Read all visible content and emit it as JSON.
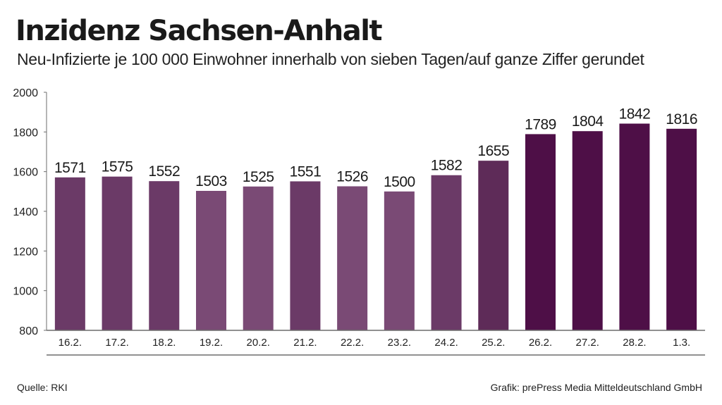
{
  "header": {
    "title": "Inzidenz Sachsen-Anhalt",
    "subtitle": "Neu-Infizierte je 100 000 Einwohner innerhalb von sieben Tagen/auf ganze Ziffer gerundet"
  },
  "footer": {
    "source": "Quelle: RKI",
    "credit": "Grafik: prePress Media Mitteldeutschland GmbH"
  },
  "chart_data": {
    "type": "bar",
    "title": "Inzidenz Sachsen-Anhalt",
    "subtitle": "Neu-Infizierte je 100 000 Einwohner innerhalb von sieben Tagen/auf ganze Ziffer gerundet",
    "xlabel": "",
    "ylabel": "",
    "categories": [
      "16.2.",
      "17.2.",
      "18.2.",
      "19.2.",
      "20.2.",
      "21.2.",
      "22.2.",
      "23.2.",
      "24.2.",
      "25.2.",
      "26.2.",
      "27.2.",
      "28.2.",
      "1.3."
    ],
    "values": [
      1571,
      1575,
      1552,
      1503,
      1525,
      1551,
      1526,
      1500,
      1582,
      1655,
      1789,
      1804,
      1842,
      1816
    ],
    "ylim": [
      800,
      2000
    ],
    "yticks": [
      800,
      1000,
      1200,
      1400,
      1600,
      1800,
      2000
    ],
    "grid": false,
    "bar_colors": [
      "#6b3a67",
      "#6b3a67",
      "#6b3a67",
      "#7a4a75",
      "#7a4a75",
      "#6b3a67",
      "#7a4a75",
      "#7a4a75",
      "#6b3a67",
      "#5e2b58",
      "#4e0f47",
      "#4e0f47",
      "#4e0f47",
      "#4e0f47"
    ],
    "axis_color": "#6d6d6d"
  }
}
